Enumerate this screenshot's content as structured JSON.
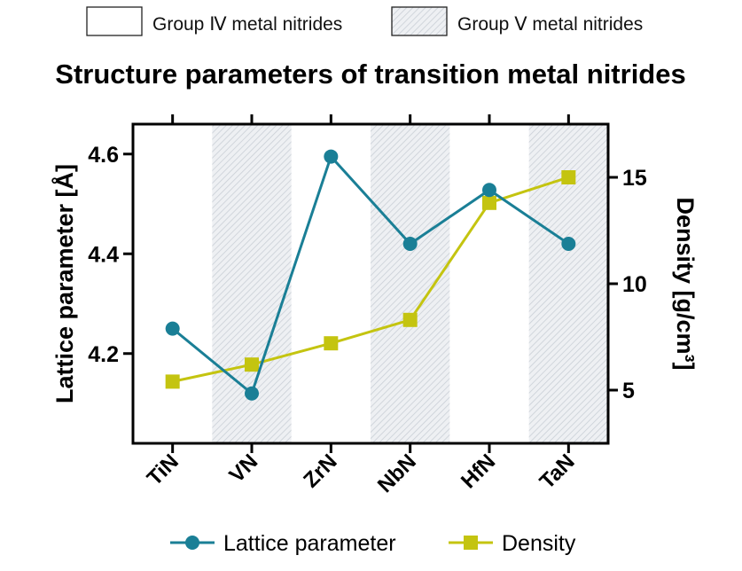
{
  "legend_top": {
    "group4": "Group Ⅳ metal nitrides",
    "group5": "Group Ⅴ metal nitrides"
  },
  "colors": {
    "lattice": "#1a7f96",
    "density": "#c4c410",
    "hatch": "#c9cfd6"
  },
  "chart_data": {
    "type": "line",
    "title": "Structure parameters of transition metal nitrides",
    "categories": [
      "TiN",
      "VN",
      "ZrN",
      "NbN",
      "HfN",
      "TaN"
    ],
    "shaded_categories": [
      "VN",
      "NbN",
      "TaN"
    ],
    "ylabel_left": "Lattice parameter [Å]",
    "ylabel_right": "Density [g/cm³]",
    "ylim_left": [
      4.02,
      4.66
    ],
    "yticks_left": [
      "4.2",
      "4.4",
      "4.6"
    ],
    "ylim_right": [
      2.5,
      17.5
    ],
    "yticks_right": [
      "5",
      "10",
      "15"
    ],
    "series": [
      {
        "name": "Lattice parameter",
        "axis": "left",
        "marker": "circle",
        "values": [
          4.25,
          4.12,
          4.595,
          4.42,
          4.528,
          4.42
        ]
      },
      {
        "name": "Density",
        "axis": "right",
        "marker": "square",
        "values": [
          5.4,
          6.2,
          7.2,
          8.3,
          13.8,
          15.0
        ]
      }
    ],
    "legend_position": "bottom",
    "grid": false
  }
}
